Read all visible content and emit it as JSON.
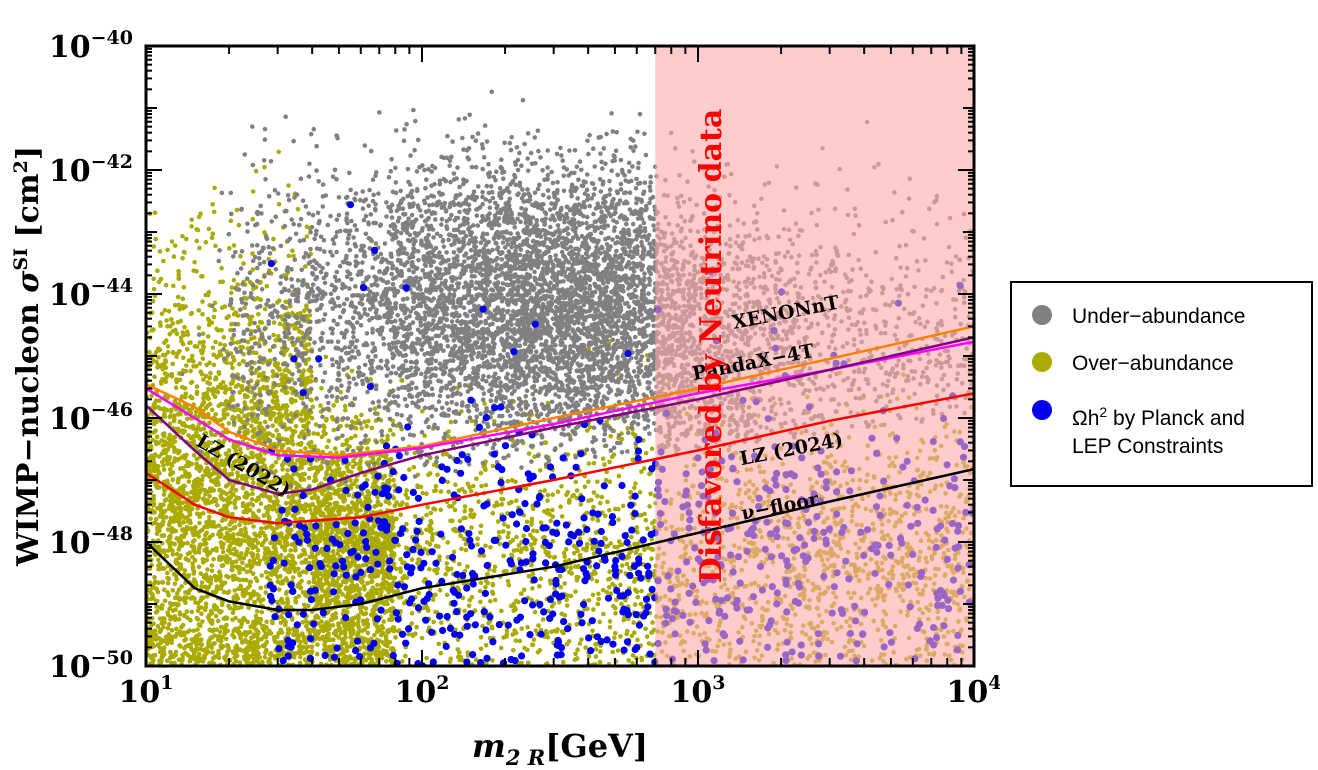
{
  "chart_data": {
    "type": "scatter",
    "x_scale": "log",
    "y_scale": "log",
    "xlim": [
      10,
      10000
    ],
    "ylim": [
      1e-50,
      1e-40
    ],
    "xlabel": {
      "base": "m",
      "sub": "2 R",
      "unit": "[GeV]"
    },
    "ylabel": {
      "prefix": "WIMP−nucleon ",
      "sigma": "σ",
      "sup": "SI",
      "unit_pre": " [cm",
      "unit_sup": "2",
      "unit_post": "]"
    },
    "x_ticks": [
      {
        "value": 10,
        "base": "10",
        "exp": "1"
      },
      {
        "value": 100,
        "base": "10",
        "exp": "2"
      },
      {
        "value": 1000,
        "base": "10",
        "exp": "3"
      },
      {
        "value": 10000,
        "base": "10",
        "exp": "4"
      }
    ],
    "y_ticks": [
      {
        "value": 1e-50,
        "base": "10",
        "exp": "−50"
      },
      {
        "value": 1e-48,
        "base": "10",
        "exp": "−48"
      },
      {
        "value": 1e-46,
        "base": "10",
        "exp": "−46"
      },
      {
        "value": 1e-44,
        "base": "10",
        "exp": "−44"
      },
      {
        "value": 1e-42,
        "base": "10",
        "exp": "−42"
      },
      {
        "value": 1e-40,
        "base": "10",
        "exp": "−40"
      }
    ],
    "shaded_region": {
      "label": "Disfavored by Neutrino data",
      "x_from": 700,
      "x_to": 10000,
      "color": "#ffaaaa"
    },
    "series": [
      {
        "name": "Under-abundance",
        "kind": "points",
        "color": "#808080",
        "distribution": {
          "x_range": [
            20,
            10000
          ],
          "y_range": [
            1e-49,
            1e-40
          ],
          "x_peak": 300,
          "y_center_exp": -44,
          "count": 7000
        }
      },
      {
        "name": "Over-abundance",
        "kind": "points",
        "color": "#aaaa00",
        "distribution": {
          "x_range": [
            10,
            10000
          ],
          "y_range": [
            1e-50,
            1e-41
          ],
          "y_center_exp": -48,
          "count": 7000
        }
      },
      {
        "name": "Ωh2 by Planck and LEP Constraints",
        "kind": "points",
        "color": "#0000ee",
        "distribution": {
          "x_range": [
            25,
            10000
          ],
          "y_range": [
            1e-50,
            1e-43
          ],
          "y_center_exp": -48.5,
          "count": 700
        }
      }
    ],
    "curves": [
      {
        "name": "XENONnT",
        "color": "#ff8000",
        "points": [
          [
            10,
            3.5e-46
          ],
          [
            15,
            1.5e-46
          ],
          [
            20,
            6e-47
          ],
          [
            30,
            3e-47
          ],
          [
            50,
            2.5e-47
          ],
          [
            100,
            3.5e-47
          ],
          [
            300,
            1e-46
          ],
          [
            1000,
            3e-46
          ],
          [
            3000,
            9e-46
          ],
          [
            10000,
            3e-45
          ]
        ]
      },
      {
        "name": "PandaX-4T",
        "color": "#ff00ff",
        "points": [
          [
            10,
            3e-46
          ],
          [
            15,
            1e-46
          ],
          [
            20,
            4.5e-47
          ],
          [
            30,
            2.5e-47
          ],
          [
            50,
            2.3e-47
          ],
          [
            100,
            3.3e-47
          ],
          [
            300,
            8e-47
          ],
          [
            1000,
            2.5e-46
          ],
          [
            3000,
            6e-46
          ],
          [
            10000,
            1.7e-45
          ]
        ]
      },
      {
        "name": "LZ (2022)",
        "color": "#800080",
        "points": [
          [
            10,
            1.6e-46
          ],
          [
            15,
            3e-47
          ],
          [
            20,
            1e-47
          ],
          [
            30,
            6e-48
          ],
          [
            40,
            7e-48
          ],
          [
            60,
            1.3e-47
          ],
          [
            100,
            2.5e-47
          ],
          [
            300,
            7e-47
          ],
          [
            1000,
            2e-46
          ],
          [
            3000,
            6e-46
          ],
          [
            10000,
            2e-45
          ]
        ]
      },
      {
        "name": "LZ (2024)",
        "color": "#ff0000",
        "points": [
          [
            10,
            1.3e-47
          ],
          [
            15,
            4e-48
          ],
          [
            20,
            2.5e-48
          ],
          [
            30,
            2e-48
          ],
          [
            40,
            2.2e-48
          ],
          [
            60,
            2.5e-48
          ],
          [
            100,
            4e-48
          ],
          [
            300,
            1e-47
          ],
          [
            1000,
            3e-47
          ],
          [
            3000,
            9e-47
          ],
          [
            10000,
            2.5e-46
          ]
        ]
      },
      {
        "name": "ν−floor",
        "color": "#000000",
        "points": [
          [
            10,
            1e-48
          ],
          [
            15,
            1.8e-49
          ],
          [
            20,
            1.1e-49
          ],
          [
            30,
            8e-50
          ],
          [
            40,
            8e-50
          ],
          [
            60,
            1e-49
          ],
          [
            100,
            1.8e-49
          ],
          [
            300,
            4e-49
          ],
          [
            1000,
            1.4e-48
          ],
          [
            3000,
            4.5e-48
          ],
          [
            10000,
            1.5e-47
          ]
        ]
      }
    ],
    "curve_labels": [
      {
        "text": "XENONnT",
        "x": 2100,
        "y": 4e-45,
        "angle": -11
      },
      {
        "text": "PandaX−4T",
        "x": 1600,
        "y": 6.3e-46,
        "angle": -11
      },
      {
        "text": "LZ (2024)",
        "x": 2200,
        "y": 2.5e-47,
        "angle": -11
      },
      {
        "text": "LZ (2022)",
        "x": 22,
        "y": 1.4e-47,
        "angle": 30
      },
      {
        "text": "ν−floor",
        "x": 2000,
        "y": 3e-48,
        "angle": -11
      }
    ],
    "legend": {
      "position": "right",
      "entries": [
        {
          "label": "Under−abundance",
          "color": "#808080"
        },
        {
          "label": "Over−abundance",
          "color": "#aaaa00"
        },
        {
          "label_main": "Ωh",
          "label_sup": "2",
          "label_rest": " by Planck and",
          "label_line2": "LEP Constraints",
          "color": "#0000ee"
        }
      ]
    }
  }
}
